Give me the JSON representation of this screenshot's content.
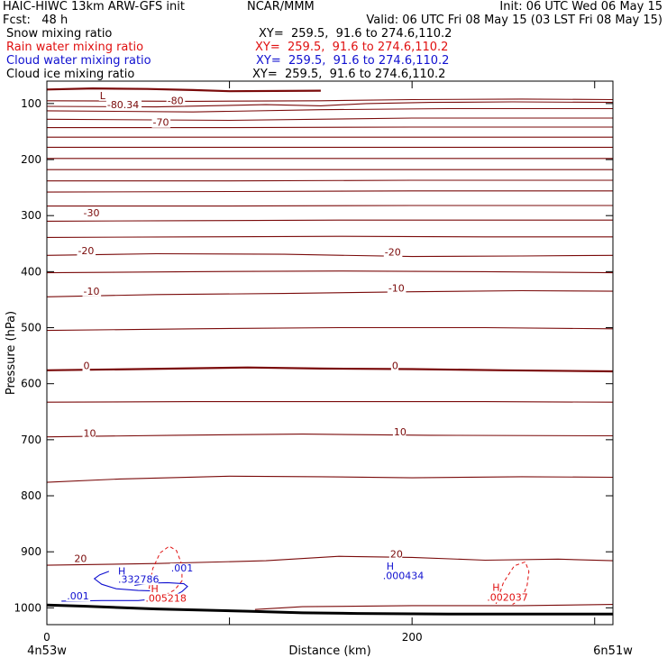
{
  "header": {
    "title_left": "HAIC-HIWC 13km ARW-GFS init",
    "org": "NCAR/MMM",
    "init": "Init: 06 UTC Wed 06 May 15",
    "fcst": "Fcst:   48 h",
    "valid": "Valid: 06 UTC Fri 08 May 15 (03 LST Fri 08 May 15)"
  },
  "fields": [
    {
      "label": "Snow mixing ratio",
      "xy": "XY=  259.5,  91.6 to 274.6,110.2",
      "color": "#000000"
    },
    {
      "label": "Rain water mixing ratio",
      "xy": "XY=  259.5,  91.6 to 274.6,110.2",
      "color": "#e01010"
    },
    {
      "label": "Cloud water mixing ratio",
      "xy": "XY=  259.5,  91.6 to 274.6,110.2",
      "color": "#1010d0"
    },
    {
      "label": "Cloud ice mixing ratio",
      "xy": "XY=  259.5,  91.6 to 274.6,110.2",
      "color": "#000000"
    }
  ],
  "chart_data": {
    "type": "line",
    "xlabel": "Distance (km)",
    "ylabel": "Pressure (hPa)",
    "xlim": [
      0,
      310
    ],
    "ylim": [
      1030,
      60
    ],
    "yscale": "linear",
    "x_ticks": [
      0,
      100,
      200,
      300
    ],
    "x_tick_labels": [
      "0",
      "",
      "200",
      ""
    ],
    "y_ticks": [
      100,
      200,
      300,
      400,
      500,
      600,
      700,
      800,
      900,
      1000
    ],
    "endpoint_labels": [
      "4n53w",
      "6n51w"
    ],
    "colors": {
      "temperature": "#7a0a0a",
      "terrain": "#000000",
      "rain": "#e01010",
      "cloud": "#1010d0"
    },
    "terrain": {
      "x": [
        0,
        20,
        60,
        110,
        140,
        170,
        220,
        260,
        310
      ],
      "p": [
        995,
        997,
        1002,
        1006,
        1009,
        1010,
        1011,
        1011,
        1011
      ]
    },
    "temperature_contours": [
      {
        "x": [
          0,
          25,
          55,
          80,
          100,
          150
        ],
        "p": [
          75,
          73,
          74,
          76,
          78,
          77
        ]
      },
      {
        "x": [
          0,
          80,
          150,
          200,
          260,
          310
        ],
        "p": [
          95,
          96,
          95,
          93,
          92,
          93
        ]
      },
      {
        "x": [
          0,
          60,
          120,
          150,
          175,
          210,
          255,
          310
        ],
        "p": [
          105,
          106,
          102,
          104,
          100,
          98,
          97,
          98
        ]
      },
      {
        "x": [
          0,
          80,
          150,
          220,
          310
        ],
        "p": [
          113,
          115,
          111,
          109,
          109
        ]
      },
      {
        "x": [
          0,
          100,
          200,
          310
        ],
        "p": [
          128,
          130,
          126,
          126
        ]
      },
      {
        "x": [
          0,
          100,
          200,
          310
        ],
        "p": [
          143,
          143,
          142,
          142
        ]
      },
      {
        "x": [
          0,
          100,
          200,
          310
        ],
        "p": [
          160,
          160,
          160,
          160
        ]
      },
      {
        "x": [
          0,
          100,
          200,
          310
        ],
        "p": [
          178,
          178,
          178,
          178
        ]
      },
      {
        "x": [
          0,
          100,
          200,
          310
        ],
        "p": [
          198,
          198,
          198,
          198
        ]
      },
      {
        "x": [
          0,
          100,
          200,
          310
        ],
        "p": [
          218,
          218,
          218,
          218
        ]
      },
      {
        "x": [
          0,
          100,
          200,
          310
        ],
        "p": [
          238,
          238,
          237,
          237
        ]
      },
      {
        "x": [
          0,
          100,
          200,
          310
        ],
        "p": [
          258,
          257,
          256,
          256
        ]
      },
      {
        "x": [
          0,
          100,
          200,
          310
        ],
        "p": [
          283,
          283,
          282,
          282
        ]
      },
      {
        "x": [
          0,
          80,
          160,
          240,
          310
        ],
        "p": [
          310,
          309,
          308,
          308,
          308
        ]
      },
      {
        "x": [
          0,
          80,
          160,
          240,
          310
        ],
        "p": [
          339,
          338,
          337,
          338,
          338
        ]
      },
      {
        "x": [
          0,
          60,
          130,
          200,
          260,
          310
        ],
        "p": [
          371,
          368,
          369,
          373,
          372,
          371
        ]
      },
      {
        "x": [
          0,
          80,
          160,
          240,
          310
        ],
        "p": [
          402,
          400,
          399,
          400,
          402
        ]
      },
      {
        "x": [
          0,
          60,
          130,
          200,
          260,
          310
        ],
        "p": [
          445,
          441,
          439,
          436,
          434,
          435
        ]
      },
      {
        "x": [
          0,
          80,
          160,
          240,
          310
        ],
        "p": [
          505,
          502,
          500,
          500,
          502
        ]
      },
      {
        "x": [
          0,
          50,
          110,
          150,
          200,
          250,
          310
        ],
        "p": [
          576,
          574,
          571,
          573,
          574,
          576,
          578
        ]
      },
      {
        "x": [
          0,
          80,
          160,
          240,
          310
        ],
        "p": [
          633,
          632,
          632,
          632,
          633
        ]
      },
      {
        "x": [
          0,
          70,
          140,
          210,
          310
        ],
        "p": [
          695,
          692,
          690,
          692,
          693
        ]
      },
      {
        "x": [
          0,
          40,
          100,
          150,
          200,
          260,
          310
        ],
        "p": [
          776,
          770,
          765,
          766,
          768,
          766,
          767
        ]
      },
      {
        "x": [
          0,
          60,
          120,
          160,
          200,
          240,
          280,
          310
        ],
        "p": [
          924,
          921,
          916,
          908,
          910,
          915,
          913,
          916
        ]
      },
      {
        "x": [
          114,
          140,
          200,
          260,
          310
        ],
        "p": [
          1003,
          998,
          996,
          996,
          994
        ]
      }
    ],
    "temperature_labels": [
      {
        "text": "L",
        "x": 29,
        "p": 92
      },
      {
        "text": "-80.34",
        "x": 33,
        "p": 108
      },
      {
        "text": "-80",
        "x": 66,
        "p": 101
      },
      {
        "text": "-70",
        "x": 58,
        "p": 140
      },
      {
        "text": "-30",
        "x": 20,
        "p": 301
      },
      {
        "text": "-20",
        "x": 17,
        "p": 369
      },
      {
        "text": "-20",
        "x": 185,
        "p": 371
      },
      {
        "text": "-10",
        "x": 20,
        "p": 441
      },
      {
        "text": "-10",
        "x": 187,
        "p": 436
      },
      {
        "text": "0",
        "x": 20,
        "p": 574
      },
      {
        "text": "0",
        "x": 189,
        "p": 574
      },
      {
        "text": "10",
        "x": 20,
        "p": 695
      },
      {
        "text": "10",
        "x": 190,
        "p": 692
      },
      {
        "text": "20",
        "x": 15,
        "p": 918
      },
      {
        "text": "20",
        "x": 188,
        "p": 910
      }
    ],
    "rain_contours": [
      {
        "x": [
          56,
          58,
          62,
          67,
          71,
          74,
          74,
          70,
          66
        ],
        "p": [
          966,
          930,
          902,
          890,
          898,
          923,
          952,
          968,
          975
        ]
      },
      {
        "x": [
          246,
          250,
          256,
          262,
          264,
          263,
          260,
          255
        ],
        "p": [
          993,
          955,
          925,
          918,
          935,
          960,
          984,
          994
        ]
      }
    ],
    "cloud_contours": [
      {
        "x": [
          8,
          30,
          50,
          62,
          70,
          74,
          77,
          75,
          66,
          56,
          48
        ],
        "p": [
          988,
          987,
          987,
          983,
          978,
          971,
          962,
          957,
          955,
          956,
          960
        ]
      },
      {
        "x": [
          34,
          29,
          26,
          30,
          38,
          50,
          60
        ],
        "p": [
          935,
          941,
          948,
          958,
          966,
          969,
          970
        ]
      }
    ],
    "rain_labels": [
      {
        "text": "H",
        "x": 57,
        "p": 972
      },
      {
        "text": ".005218",
        "x": 54,
        "p": 989
      },
      {
        "text": "H",
        "x": 244,
        "p": 970
      },
      {
        "text": ".002037",
        "x": 241,
        "p": 987
      }
    ],
    "cloud_labels": [
      {
        "text": "H",
        "x": 39,
        "p": 941
      },
      {
        "text": ".332786",
        "x": 39,
        "p": 955
      },
      {
        "text": ".001",
        "x": 68,
        "p": 935
      },
      {
        "text": ".001",
        "x": 11,
        "p": 985
      },
      {
        "text": "H",
        "x": 186,
        "p": 932
      },
      {
        "text": ".000434",
        "x": 184,
        "p": 949
      }
    ]
  }
}
